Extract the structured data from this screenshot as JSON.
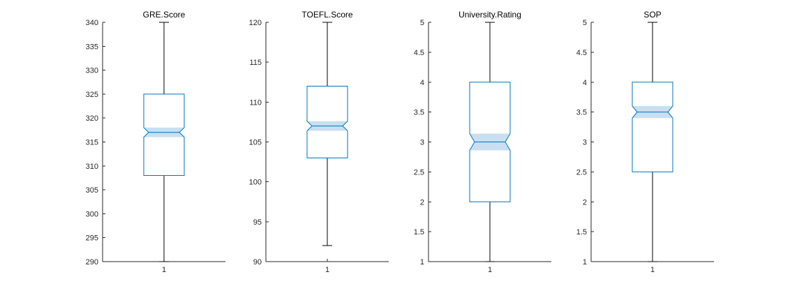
{
  "chart_data": [
    {
      "type": "box",
      "title": "GRE.Score",
      "categories": [
        "1"
      ],
      "ylim": [
        290,
        340
      ],
      "yticks": [
        "290",
        "295",
        "300",
        "305",
        "310",
        "315",
        "320",
        "325",
        "330",
        "335",
        "340"
      ],
      "stats": {
        "whisker_low": 290,
        "q1": 308,
        "median": 317,
        "q3": 325,
        "whisker_high": 340,
        "notch_low": 316,
        "notch_high": 318
      },
      "colors": {
        "box": "#0072bd",
        "notch_fill": "#c9dff0",
        "whisker": "#000000"
      }
    },
    {
      "type": "box",
      "title": "TOEFL.Score",
      "categories": [
        "1"
      ],
      "ylim": [
        90,
        120
      ],
      "yticks": [
        "90",
        "95",
        "100",
        "105",
        "110",
        "115",
        "120"
      ],
      "stats": {
        "whisker_low": 92,
        "q1": 103,
        "median": 107,
        "q3": 112,
        "whisker_high": 120,
        "notch_low": 106.4,
        "notch_high": 107.6
      },
      "colors": {
        "box": "#0072bd",
        "notch_fill": "#c9dff0",
        "whisker": "#000000"
      }
    },
    {
      "type": "box",
      "title": "University.Rating",
      "categories": [
        "1"
      ],
      "ylim": [
        1,
        5
      ],
      "yticks": [
        "1",
        "1.5",
        "2",
        "2.5",
        "3",
        "3.5",
        "4",
        "4.5",
        "5"
      ],
      "stats": {
        "whisker_low": 1,
        "q1": 2,
        "median": 3,
        "q3": 4,
        "whisker_high": 5,
        "notch_low": 2.86,
        "notch_high": 3.14
      },
      "colors": {
        "box": "#0072bd",
        "notch_fill": "#c9dff0",
        "whisker": "#000000"
      }
    },
    {
      "type": "box",
      "title": "SOP",
      "categories": [
        "1"
      ],
      "ylim": [
        1,
        5
      ],
      "yticks": [
        "1",
        "1.5",
        "2",
        "2.5",
        "3",
        "3.5",
        "4",
        "4.5",
        "5"
      ],
      "stats": {
        "whisker_low": 1,
        "q1": 2.5,
        "median": 3.5,
        "q3": 4,
        "whisker_high": 5,
        "notch_low": 3.4,
        "notch_high": 3.6
      },
      "colors": {
        "box": "#0072bd",
        "notch_fill": "#c9dff0",
        "whisker": "#000000"
      }
    }
  ]
}
